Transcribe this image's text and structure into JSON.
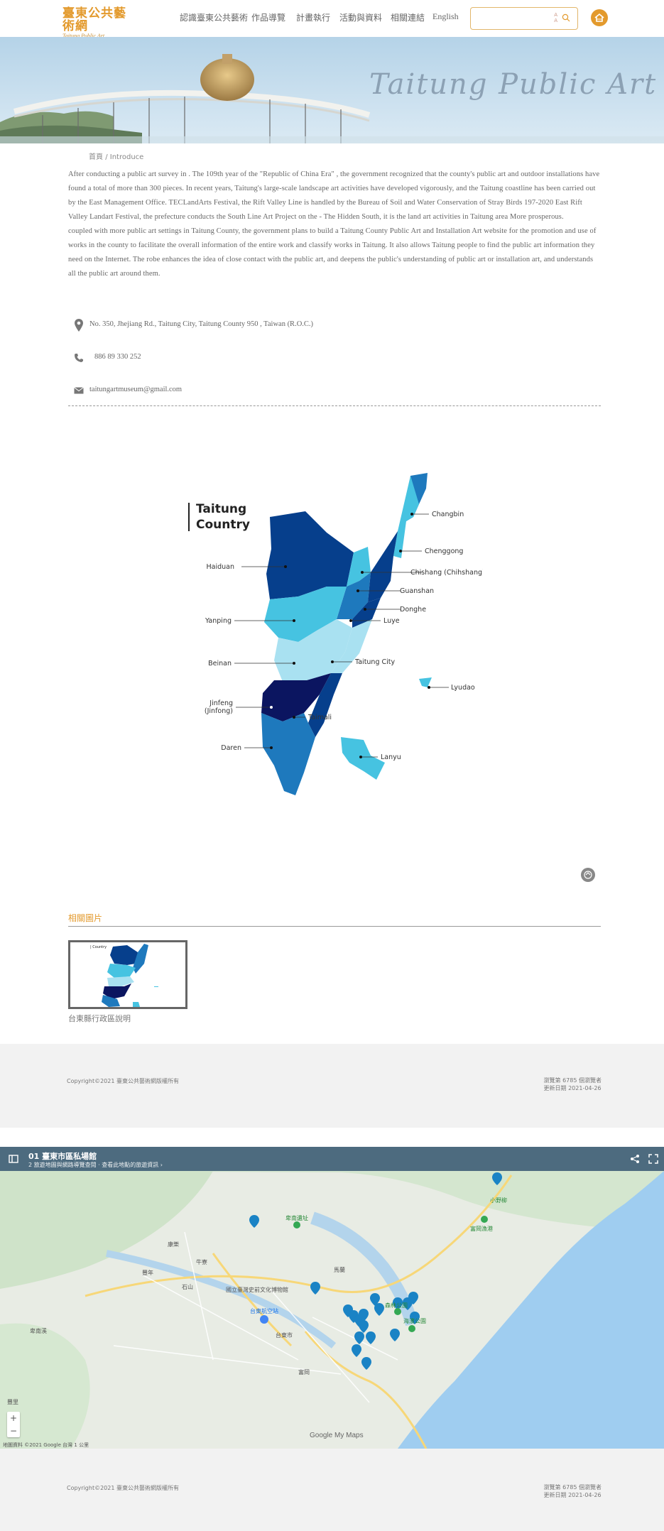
{
  "header": {
    "logo_zh": "臺東公共藝術網",
    "logo_en": "Taitung Public Art",
    "nav": [
      "認識臺東公共藝術",
      "作品導覽",
      "計畫執行",
      "活動與資料",
      "相關連結",
      "English"
    ],
    "search_zoom": [
      "A",
      "A",
      "A"
    ]
  },
  "banner": {
    "title": "Taitung Public Art"
  },
  "breadcrumb": {
    "home": "首頁",
    "sep": "/",
    "current": "Introduce"
  },
  "intro": {
    "p1": "After conducting a public art survey in . The 109th year of the \"Republic of China Era\" , the government recognized that the county's public art and outdoor installations have found a total of more than 300 pieces. In recent years, Taitung's large-scale landscape art activities have developed vigorously, and the Taitung coastline has been carried out by the East Management Office. TECLandArts Festival, the Rift Valley Line is handled by the Bureau of Soil and Water Conservation of Stray Birds 197-2020 East Rift Valley Landart Festival, the prefecture conducts the South Line Art Project on the - The Hidden South, it is the land art activities in Taitung area More prosperous.",
    "p2": "coupled with more public art settings in Taitung County, the government plans to build a Taitung County Public Art and Installation Art website for the promotion and use of works in the county to facilitate the overall information of the entire work and classify works in Taitung. It also allows Taitung people to find the public art information they need on the Internet. The robe enhances the idea of close contact with the public art, and deepens the public's understanding of public art or installation art, and understands all the public art around them."
  },
  "contact": {
    "address": "No. 350, Jhejiang Rd., Taitung City, Taitung County 950 , Taiwan (R.O.C.)",
    "phone": "886 89 330 252",
    "email": "taitungartmuseum@gmail.com"
  },
  "map": {
    "title_line1": "Taitung",
    "title_line2": "Country",
    "labels": [
      "Changbin",
      "Chenggong",
      "Chishang (Chihshang)",
      "Guanshan",
      "Haiduan",
      "Donghe",
      "Luye",
      "Yanping",
      "Beinan",
      "Taitung City",
      "Lyudao",
      "Jinfeng",
      "(Jinfong)",
      "Taimali",
      "Daren",
      "Lanyu"
    ],
    "colors": {
      "darkest": "#0b1560",
      "dark": "#063f8c",
      "mid": "#1e79bd",
      "light": "#46c3e1",
      "lighter": "#a9e1f1"
    }
  },
  "related": {
    "title": "相關圖片",
    "caption": "台東縣行政區說明",
    "thumb_title": "| Country"
  },
  "footer1": {
    "copyright": "Copyright©2021 臺東公共藝術網版權所有",
    "visitors": "瀏覽第 6785 個瀏覽者",
    "updated": "更新日期 2021-04-26"
  },
  "gmap": {
    "title": "01 臺東市區私場館",
    "subtitle": "2 旅遊地圖與網路導覽查閱 · 查看此地點的旅遊資訊 ›",
    "attribution": "地圖資料 ©2021 Google   台灣   1 公里",
    "google": "Google My Maps",
    "places": [
      "牛寮",
      "卑南遺址",
      "國立臺灣史前文化博物館",
      "台東航空站",
      "台東市",
      "卑南溪",
      "小野柳",
      "富岡漁港",
      "森林公園",
      "海濱公園",
      "豐里",
      "豐年",
      "康樂",
      "富岡",
      "馬蘭",
      "石山"
    ]
  },
  "footer2": {
    "copyright": "Copyright©2021 臺東公共藝術網版權所有",
    "visitors": "瀏覽第 6785 個瀏覽者",
    "updated": "更新日期 2021-04-26"
  }
}
